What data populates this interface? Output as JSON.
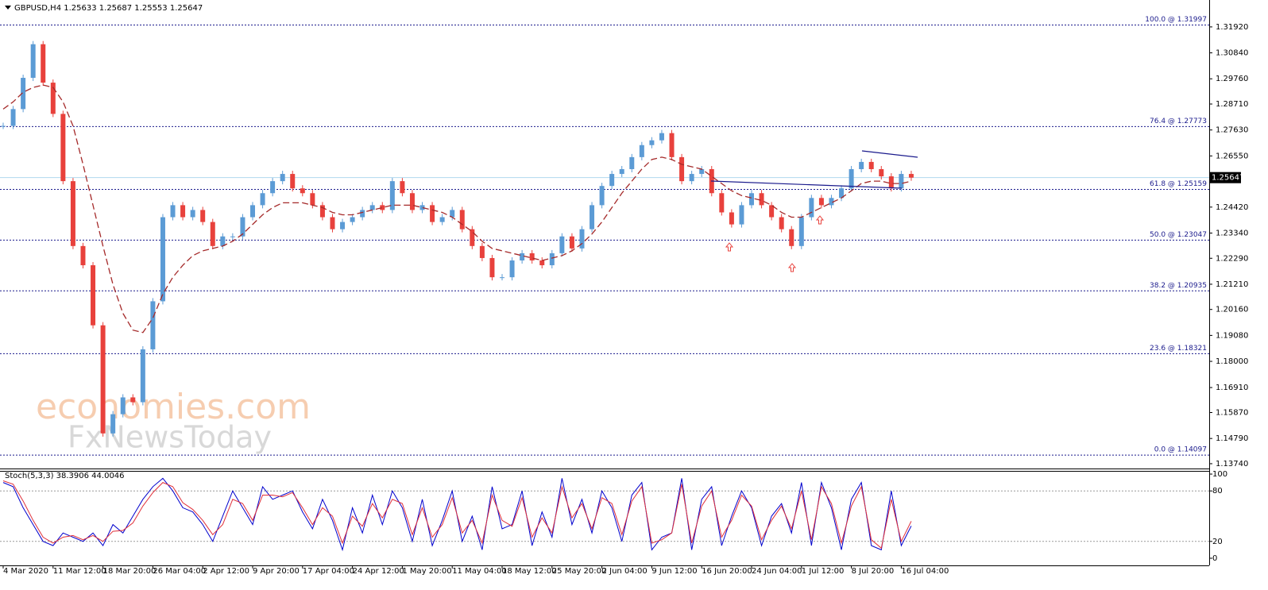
{
  "chart_data": [
    {
      "type": "candlestick",
      "title": "GBPUSD,H4  1.25633 1.25687 1.25553 1.25647",
      "categories": [
        "4 Mar 2020",
        null,
        null,
        null,
        null,
        "11 Mar 12:00",
        null,
        null,
        null,
        null,
        "18 Mar 20:00",
        null,
        null,
        null,
        null,
        "26 Mar 04:00",
        null,
        null,
        null,
        null,
        "2 Apr 12:00",
        null,
        null,
        null,
        null,
        "9 Apr 20:00",
        null,
        null,
        null,
        null,
        "17 Apr 04:00",
        null,
        null,
        null,
        null,
        "24 Apr 12:00",
        null,
        null,
        null,
        null,
        "1 May 20:00",
        null,
        null,
        null,
        null,
        "11 May 04:00",
        null,
        null,
        null,
        null,
        "18 May 12:00",
        null,
        null,
        null,
        null,
        "25 May 20:00",
        null,
        null,
        null,
        null,
        "2 Jun 04:00",
        null,
        null,
        null,
        null,
        "9 Jun 12:00",
        null,
        null,
        null,
        null,
        "16 Jun 20:00",
        null,
        null,
        null,
        null,
        "24 Jun 04:00",
        null,
        null,
        null,
        null,
        "1 Jul 12:00",
        null,
        null,
        null,
        null,
        "8 Jul 20:00",
        null,
        null,
        null,
        null,
        "16 Jul 04:00",
        null
      ],
      "close": [
        1.278,
        1.285,
        1.298,
        1.312,
        1.296,
        1.283,
        1.255,
        1.228,
        1.22,
        1.195,
        1.15,
        1.158,
        1.165,
        1.163,
        1.185,
        1.205,
        1.24,
        1.245,
        1.24,
        1.243,
        1.238,
        1.228,
        1.232,
        1.232,
        1.24,
        1.245,
        1.25,
        1.255,
        1.258,
        1.252,
        1.25,
        1.245,
        1.24,
        1.235,
        1.238,
        1.24,
        1.243,
        1.245,
        1.243,
        1.255,
        1.25,
        1.243,
        1.245,
        1.238,
        1.24,
        1.243,
        1.235,
        1.228,
        1.223,
        1.215,
        1.215,
        1.222,
        1.225,
        1.222,
        1.22,
        1.225,
        1.232,
        1.227,
        1.235,
        1.245,
        1.253,
        1.258,
        1.26,
        1.265,
        1.27,
        1.272,
        1.275,
        1.265,
        1.255,
        1.258,
        1.26,
        1.25,
        1.242,
        1.237,
        1.245,
        1.25,
        1.245,
        1.24,
        1.235,
        1.228,
        1.24,
        1.248,
        1.245,
        1.248,
        1.252,
        1.26,
        1.263,
        1.26,
        1.257,
        1.252,
        1.258,
        1.25647
      ],
      "up_color": "#5b9bd5",
      "down_color": "#e8413c",
      "ma": [
        1.285,
        1.288,
        1.292,
        1.294,
        1.295,
        1.294,
        1.288,
        1.278,
        1.262,
        1.245,
        1.228,
        1.212,
        1.2,
        1.193,
        1.192,
        1.198,
        1.208,
        1.215,
        1.22,
        1.224,
        1.226,
        1.227,
        1.228,
        1.23,
        1.233,
        1.237,
        1.241,
        1.244,
        1.246,
        1.246,
        1.246,
        1.245,
        1.244,
        1.242,
        1.241,
        1.241,
        1.242,
        1.243,
        1.244,
        1.245,
        1.245,
        1.245,
        1.244,
        1.243,
        1.242,
        1.24,
        1.237,
        1.234,
        1.23,
        1.227,
        1.226,
        1.225,
        1.224,
        1.223,
        1.222,
        1.223,
        1.224,
        1.226,
        1.229,
        1.233,
        1.238,
        1.244,
        1.25,
        1.255,
        1.26,
        1.264,
        1.265,
        1.264,
        1.262,
        1.261,
        1.26,
        1.257,
        1.254,
        1.251,
        1.249,
        1.248,
        1.247,
        1.245,
        1.242,
        1.24,
        1.24,
        1.242,
        1.244,
        1.246,
        1.248,
        1.251,
        1.254,
        1.255,
        1.255,
        1.254,
        1.254,
        1.255
      ],
      "ma_color": "#a52a2a",
      "ylim": [
        1.1354,
        1.3304
      ],
      "yticks": [
        {
          "value": 1.3192,
          "label": "1.31920"
        },
        {
          "value": 1.3084,
          "label": "1.30840"
        },
        {
          "value": 1.2976,
          "label": "1.29760"
        },
        {
          "value": 1.2871,
          "label": "1.28710"
        },
        {
          "value": 1.2763,
          "label": "1.27630"
        },
        {
          "value": 1.2655,
          "label": "1.26550"
        },
        {
          "value": 1.2442,
          "label": "1.24420"
        },
        {
          "value": 1.2334,
          "label": "1.23340"
        },
        {
          "value": 1.2229,
          "label": "1.22290"
        },
        {
          "value": 1.2121,
          "label": "1.21210"
        },
        {
          "value": 1.2016,
          "label": "1.20160"
        },
        {
          "value": 1.1908,
          "label": "1.19080"
        },
        {
          "value": 1.18,
          "label": "1.18000"
        },
        {
          "value": 1.1691,
          "label": "1.16910"
        },
        {
          "value": 1.1587,
          "label": "1.15870"
        },
        {
          "value": 1.1479,
          "label": "1.14790"
        },
        {
          "value": 1.1374,
          "label": "1.13740"
        }
      ],
      "last_price": 1.25647,
      "last_price_color": "#b0d8ee",
      "levels": [
        {
          "label": "100.0 @ 1.31997",
          "value": 1.31997
        },
        {
          "label": "76.4 @ 1.27773",
          "value": 1.27773
        },
        {
          "label": "61.8 @ 1.25159",
          "value": 1.25159
        },
        {
          "label": "50.0 @ 1.23047",
          "value": 1.23047
        },
        {
          "label": "38.2 @ 1.20935",
          "value": 1.20935
        },
        {
          "label": "23.6 @ 1.18321",
          "value": 1.18321
        },
        {
          "label": "0.0 @ 1.14097",
          "value": 1.14097
        }
      ],
      "level_color": "#1a1a8c",
      "watermark": [
        "economies.com",
        "FxNewsToday"
      ]
    },
    {
      "type": "stochastic",
      "title": "Stoch(5,3,3) 38.3906 44.0046",
      "series": [
        {
          "color": "#0000cd",
          "values": [
            90,
            85,
            60,
            40,
            20,
            15,
            30,
            25,
            20,
            30,
            15,
            40,
            30,
            50,
            70,
            85,
            95,
            80,
            60,
            55,
            40,
            20,
            50,
            80,
            60,
            40,
            85,
            70,
            75,
            80,
            55,
            35,
            70,
            45,
            10,
            60,
            30,
            75,
            40,
            80,
            60,
            20,
            70,
            15,
            45,
            80,
            20,
            50,
            10,
            85,
            35,
            40,
            80,
            15,
            55,
            25,
            95,
            40,
            70,
            30,
            80,
            60,
            20,
            75,
            90,
            10,
            25,
            30,
            95,
            10,
            70,
            85,
            15,
            50,
            80,
            60,
            15,
            50,
            65,
            30,
            90,
            15,
            90,
            60,
            10,
            70,
            90,
            15,
            10,
            80,
            15,
            38.3906
          ]
        },
        {
          "color": "#e0303a",
          "values": [
            92,
            88,
            68,
            45,
            25,
            18,
            25,
            27,
            22,
            27,
            20,
            32,
            33,
            42,
            62,
            78,
            90,
            85,
            66,
            58,
            45,
            28,
            40,
            70,
            65,
            45,
            75,
            75,
            73,
            78,
            60,
            40,
            60,
            50,
            18,
            50,
            38,
            65,
            48,
            70,
            65,
            28,
            60,
            25,
            40,
            72,
            30,
            45,
            18,
            75,
            45,
            38,
            72,
            25,
            48,
            30,
            85,
            48,
            65,
            35,
            72,
            65,
            28,
            68,
            85,
            18,
            22,
            30,
            88,
            18,
            62,
            80,
            25,
            45,
            75,
            62,
            22,
            45,
            62,
            35,
            80,
            22,
            85,
            65,
            18,
            62,
            85,
            22,
            12,
            70,
            20,
            44.0046
          ]
        }
      ],
      "ylim": [
        -8.5,
        103.8
      ],
      "yticks": [
        0,
        20,
        80,
        100
      ],
      "levels": [
        20,
        80
      ]
    }
  ]
}
